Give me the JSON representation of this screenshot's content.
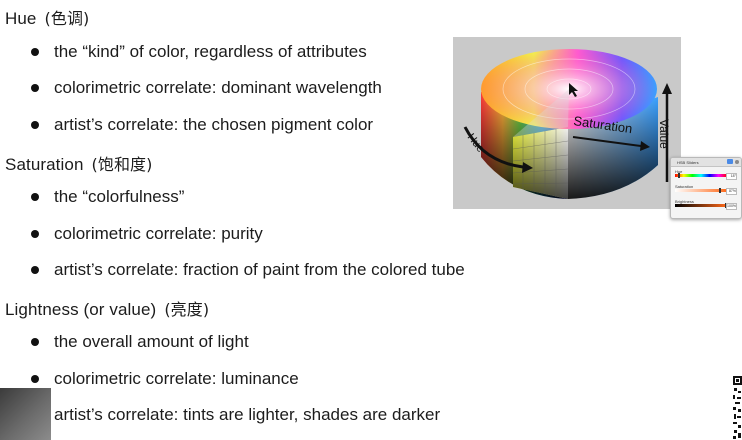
{
  "sections": [
    {
      "title": "Hue",
      "title_cn": "(色调)",
      "bullets": [
        "the “kind” of color, regardless of attributes",
        "colorimetric correlate: dominant wavelength",
        "artist’s correlate: the chosen pigment color"
      ]
    },
    {
      "title": "Saturation",
      "title_cn": "(饱和度)",
      "bullets": [
        "the “colorfulness”",
        "colorimetric correlate: purity",
        "artist’s correlate: fraction of paint from the colored tube"
      ]
    },
    {
      "title": "Lightness (or value)",
      "title_cn": "(亮度)",
      "bullets": [
        "the overall amount of light",
        "colorimetric correlate: luminance",
        "artist’s correlate: tints are lighter, shades are darker"
      ]
    }
  ],
  "figure": {
    "label_hue": "Hue",
    "label_saturation": "Saturation",
    "label_value": "Value"
  },
  "hsb_panel": {
    "title": "HSB Sliders",
    "sliders": [
      {
        "label": "Hue",
        "value_text": "18°",
        "fraction": 0.05
      },
      {
        "label": "Saturation",
        "value_text": "87%",
        "fraction": 0.87
      },
      {
        "label": "Brightness",
        "value_text": "100%",
        "fraction": 1.0
      }
    ]
  },
  "colors": {
    "text": "#1c1c1c",
    "figure_background": "#c9c9c9",
    "arrow": "#111111"
  }
}
